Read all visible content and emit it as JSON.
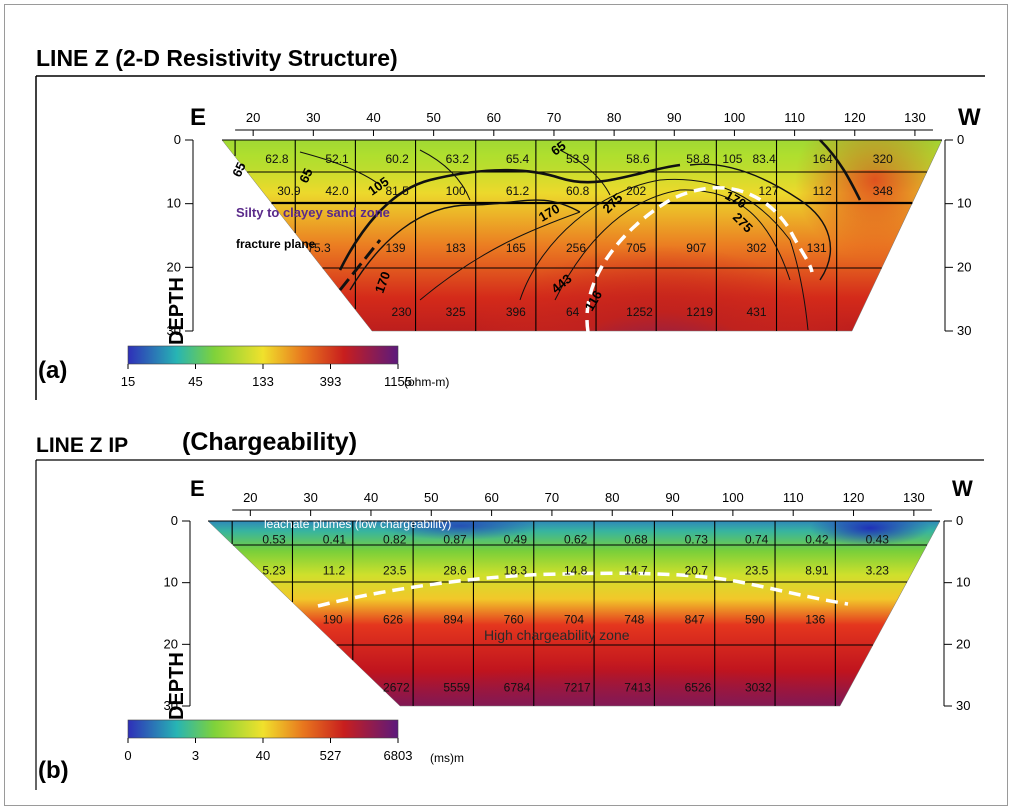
{
  "panels": [
    {
      "title": "LINE Z (2-D Resistivity Structure)",
      "subtitle": "",
      "panel_label": "(a)",
      "left_dir": "E",
      "right_dir": "W",
      "depth_label": "DEPTH",
      "annotations": [
        "Silty to clayey sand zone",
        "fracture plane"
      ],
      "contour_labels": [
        "65",
        "65",
        "105",
        "65",
        "170",
        "275",
        "170",
        "275",
        "170",
        "443",
        "116"
      ],
      "colorbar": {
        "ticks": [
          "15",
          "45",
          "133",
          "393",
          "1155"
        ],
        "unit": "(ohm-m)"
      }
    },
    {
      "title": "LINE Z IP",
      "subtitle": "(Chargeability)",
      "panel_label": "(b)",
      "left_dir": "E",
      "right_dir": "W",
      "depth_label": "DEPTH",
      "annotations": [
        "leachate plumes (low chargeability)",
        "High chargeability zone"
      ],
      "contour_labels": [],
      "colorbar": {
        "ticks": [
          "0",
          "3",
          "40",
          "527",
          "6803"
        ],
        "unit": "(ms)m"
      }
    }
  ],
  "chart_data": [
    {
      "type": "heatmap",
      "title": "LINE Z (2-D Resistivity Structure)",
      "xlabel": "",
      "ylabel": "DEPTH",
      "x_ticks": [
        "20",
        "30",
        "40",
        "50",
        "60",
        "70",
        "80",
        "90",
        "100",
        "110",
        "120",
        "130"
      ],
      "y_ticks": [
        "0",
        "10",
        "20",
        "30"
      ],
      "xlim": [
        10,
        135
      ],
      "ylim": [
        0,
        30
      ],
      "rows": [
        {
          "depth": 3,
          "x": [
            22,
            32,
            42,
            52,
            62,
            72,
            82,
            92,
            98,
            103,
            113,
            123
          ],
          "values": [
            "62.8",
            "52.1",
            "60.2",
            "63.2",
            "65.4",
            "53.9",
            "58.6",
            "58.8",
            "105",
            "83.4",
            "164",
            "320"
          ]
        },
        {
          "depth": 8,
          "x": [
            24,
            32,
            42,
            52,
            62,
            72,
            82,
            92,
            104,
            113,
            123
          ],
          "values": [
            "30.9",
            "42.0",
            "81.5",
            "100",
            "61.2",
            "60.8",
            "202",
            "",
            "127",
            "112",
            "348"
          ]
        },
        {
          "depth": 17,
          "x": [
            29,
            42,
            52,
            62,
            72,
            82,
            92,
            102,
            112
          ],
          "values": [
            "75.3",
            "139",
            "183",
            "165",
            "256",
            "705",
            "907",
            "302",
            "131"
          ]
        },
        {
          "depth": 27,
          "x": [
            43,
            52,
            62,
            72,
            82,
            92,
            102
          ],
          "values": [
            "230",
            "325",
            "396",
            "64",
            "1252",
            "1219",
            "431"
          ]
        }
      ],
      "colorbar": {
        "ticks": [
          "15",
          "45",
          "133",
          "393",
          "1155"
        ],
        "unit": "(ohm-m)"
      }
    },
    {
      "type": "heatmap",
      "title": "LINE Z IP (Chargeability)",
      "xlabel": "",
      "ylabel": "DEPTH",
      "x_ticks": [
        "20",
        "30",
        "40",
        "50",
        "60",
        "70",
        "80",
        "90",
        "100",
        "110",
        "120",
        "130"
      ],
      "y_ticks": [
        "0",
        "10",
        "20",
        "30"
      ],
      "xlim": [
        10,
        135
      ],
      "ylim": [
        0,
        30
      ],
      "rows": [
        {
          "depth": 3,
          "x": [
            22,
            32,
            42,
            52,
            62,
            72,
            82,
            92,
            102,
            112,
            122
          ],
          "values": [
            "0.53",
            "0.41",
            "0.82",
            "0.87",
            "0.49",
            "0.62",
            "0.68",
            "0.73",
            "0.74",
            "0.42",
            "0.43"
          ]
        },
        {
          "depth": 8,
          "x": [
            22,
            32,
            42,
            52,
            62,
            72,
            82,
            92,
            102,
            112,
            122
          ],
          "values": [
            "5.23",
            "11.2",
            "23.5",
            "28.6",
            "18.3",
            "14.8",
            "14.7",
            "20.7",
            "23.5",
            "8.91",
            "3.23"
          ]
        },
        {
          "depth": 16,
          "x": [
            32,
            42,
            52,
            62,
            72,
            82,
            92,
            102,
            112
          ],
          "values": [
            "190",
            "626",
            "894",
            "760",
            "704",
            "748",
            "847",
            "590",
            "136"
          ]
        },
        {
          "depth": 27,
          "x": [
            42,
            52,
            62,
            72,
            82,
            92,
            102
          ],
          "values": [
            "2672",
            "5559",
            "6784",
            "7217",
            "7413",
            "6526",
            "3032"
          ]
        }
      ],
      "colorbar": {
        "ticks": [
          "0",
          "3",
          "40",
          "527",
          "6803"
        ],
        "unit": "(ms)m"
      }
    }
  ]
}
